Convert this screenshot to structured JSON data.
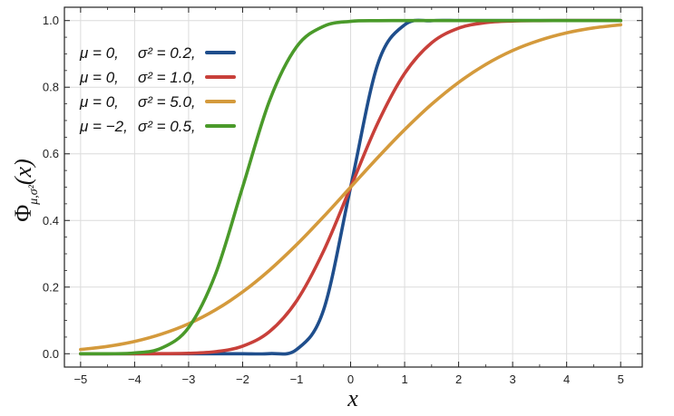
{
  "chart_data": {
    "type": "line",
    "title": "",
    "xlabel": "x",
    "ylabel_main": "Φ",
    "ylabel_sub": "μ,σ²",
    "ylabel_arg": "(x)",
    "xlim": [
      -5.3,
      5.4
    ],
    "ylim": [
      -0.04,
      1.04
    ],
    "xticks": [
      -5,
      -4,
      -3,
      -2,
      -1,
      0,
      1,
      2,
      3,
      4,
      5
    ],
    "xtick_labels": [
      "−5",
      "−4",
      "−3",
      "−2",
      "−1",
      "0",
      "1",
      "2",
      "3",
      "4",
      "5"
    ],
    "yticks": [
      0.0,
      0.2,
      0.4,
      0.6,
      0.8,
      1.0
    ],
    "ytick_labels": [
      "0.0",
      "0.2",
      "0.4",
      "0.6",
      "0.8",
      "1.0"
    ],
    "grid": true,
    "legend_position": "top-left",
    "x": [
      -5,
      -4.5,
      -4,
      -3.5,
      -3,
      -2.5,
      -2,
      -1.5,
      -1,
      -0.5,
      0,
      0.5,
      1,
      1.5,
      2,
      2.5,
      3,
      3.5,
      4,
      4.5,
      5
    ],
    "series": [
      {
        "mu_label": "μ = 0,",
        "sigma_label": "σ² = 0.2,",
        "color": "#1f4e8c",
        "values": [
          0.0,
          0.0,
          0.0,
          0.0,
          0.0,
          0.0,
          0.0,
          0.0004,
          0.0127,
          0.1318,
          0.5,
          0.8682,
          0.9873,
          0.9996,
          1.0,
          1.0,
          1.0,
          1.0,
          1.0,
          1.0,
          1.0
        ]
      },
      {
        "mu_label": "μ = 0,",
        "sigma_label": "σ² = 1.0,",
        "color": "#c8403a",
        "values": [
          0.0,
          0.0,
          0.0,
          0.0002,
          0.0013,
          0.0062,
          0.0228,
          0.0668,
          0.1587,
          0.3085,
          0.5,
          0.6915,
          0.8413,
          0.9332,
          0.9772,
          0.9938,
          0.9987,
          0.9998,
          1.0,
          1.0,
          1.0
        ]
      },
      {
        "mu_label": "μ = 0,",
        "sigma_label": "σ² = 5.0,",
        "color": "#d49a3c",
        "values": [
          0.0127,
          0.0221,
          0.0368,
          0.0591,
          0.0899,
          0.1318,
          0.1855,
          0.2512,
          0.3274,
          0.4115,
          0.5,
          0.5885,
          0.6726,
          0.7488,
          0.8145,
          0.8682,
          0.9101,
          0.9409,
          0.9632,
          0.9779,
          0.9873
        ]
      },
      {
        "mu_label": "μ = −2,",
        "sigma_label": "σ² = 0.5,",
        "color": "#4a9a2a",
        "values": [
          0.0,
          0.0,
          0.0023,
          0.017,
          0.0786,
          0.2398,
          0.5,
          0.7602,
          0.9214,
          0.983,
          0.9977,
          0.9998,
          1.0,
          1.0,
          1.0,
          1.0,
          1.0,
          1.0,
          1.0,
          1.0,
          1.0
        ]
      }
    ]
  }
}
